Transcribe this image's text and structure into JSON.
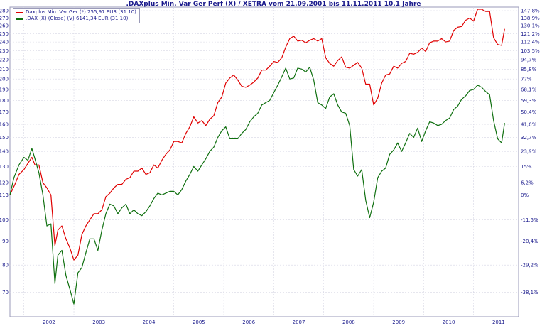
{
  "chart_data": {
    "type": "line",
    "title": ".DAXplus Min. Var Ger Perf (X) / XETRA vom 21.09.2001 bis 11.11.2011 10,1 Jahre",
    "x_ticks": [
      "2002",
      "2003",
      "2004",
      "2005",
      "2006",
      "2007",
      "2008",
      "2009",
      "2010",
      "2011"
    ],
    "y_ticks_left": [
      70,
      80,
      90,
      100,
      113,
      120,
      130,
      140,
      150,
      160,
      170,
      180,
      190,
      200,
      210,
      220,
      230,
      240,
      250,
      260,
      270,
      280
    ],
    "y_ticks_right": [
      "147,8%",
      "138,9%",
      "130,1%",
      "121,2%",
      "112,4%",
      "103,5%",
      "94,7%",
      "85,8%",
      "77%",
      "68,1%",
      "59,3%",
      "50,4%",
      "41,6%",
      "32,7%",
      "23,9%",
      "15%",
      "6,2%",
      "0%",
      "-11,5%",
      "-20,4%",
      "-29,2%",
      "-38,1%"
    ],
    "y_ticks_right_values": [
      280,
      270,
      260,
      250,
      240,
      230,
      220,
      210,
      200,
      190,
      180,
      170,
      160,
      150,
      140,
      130,
      120,
      113,
      100,
      90,
      80,
      70
    ],
    "y_scale": "log",
    "ylim": [
      62,
      285
    ],
    "xlim": [
      2001.72,
      2011.9
    ],
    "grid": true,
    "legend_position": "top-left",
    "series": [
      {
        "name": "Daxplus Min. Var Ger (*) 255,97 EUR (31.10)",
        "color": "#e00000",
        "points": [
          [
            2001.72,
            113
          ],
          [
            2001.82,
            119
          ],
          [
            2001.9,
            125
          ],
          [
            2002.0,
            128
          ],
          [
            2002.08,
            132
          ],
          [
            2002.16,
            136
          ],
          [
            2002.22,
            131
          ],
          [
            2002.3,
            131
          ],
          [
            2002.38,
            120
          ],
          [
            2002.46,
            117
          ],
          [
            2002.54,
            113
          ],
          [
            2002.62,
            88
          ],
          [
            2002.68,
            95
          ],
          [
            2002.76,
            97
          ],
          [
            2002.84,
            91
          ],
          [
            2002.92,
            87
          ],
          [
            2003.0,
            82
          ],
          [
            2003.08,
            84
          ],
          [
            2003.16,
            93
          ],
          [
            2003.24,
            97
          ],
          [
            2003.32,
            100
          ],
          [
            2003.4,
            103
          ],
          [
            2003.48,
            103
          ],
          [
            2003.56,
            105
          ],
          [
            2003.64,
            112
          ],
          [
            2003.72,
            114
          ],
          [
            2003.8,
            117
          ],
          [
            2003.88,
            119
          ],
          [
            2003.96,
            119
          ],
          [
            2004.04,
            122
          ],
          [
            2004.12,
            123
          ],
          [
            2004.2,
            127
          ],
          [
            2004.28,
            127
          ],
          [
            2004.36,
            129
          ],
          [
            2004.44,
            125
          ],
          [
            2004.52,
            126
          ],
          [
            2004.6,
            131
          ],
          [
            2004.68,
            129
          ],
          [
            2004.76,
            134
          ],
          [
            2004.84,
            138
          ],
          [
            2004.92,
            141
          ],
          [
            2005.0,
            147
          ],
          [
            2005.08,
            147
          ],
          [
            2005.16,
            146
          ],
          [
            2005.24,
            153
          ],
          [
            2005.32,
            158
          ],
          [
            2005.4,
            166
          ],
          [
            2005.48,
            161
          ],
          [
            2005.56,
            163
          ],
          [
            2005.64,
            159
          ],
          [
            2005.72,
            164
          ],
          [
            2005.8,
            167
          ],
          [
            2005.88,
            178
          ],
          [
            2005.96,
            183
          ],
          [
            2006.04,
            196
          ],
          [
            2006.12,
            201
          ],
          [
            2006.2,
            204
          ],
          [
            2006.28,
            199
          ],
          [
            2006.36,
            193
          ],
          [
            2006.44,
            192
          ],
          [
            2006.52,
            194
          ],
          [
            2006.6,
            197
          ],
          [
            2006.68,
            201
          ],
          [
            2006.76,
            209
          ],
          [
            2006.84,
            209
          ],
          [
            2006.92,
            213
          ],
          [
            2007.0,
            218
          ],
          [
            2007.08,
            217
          ],
          [
            2007.16,
            222
          ],
          [
            2007.24,
            234
          ],
          [
            2007.32,
            244
          ],
          [
            2007.4,
            247
          ],
          [
            2007.48,
            241
          ],
          [
            2007.56,
            242
          ],
          [
            2007.64,
            239
          ],
          [
            2007.72,
            242
          ],
          [
            2007.8,
            244
          ],
          [
            2007.88,
            241
          ],
          [
            2007.96,
            244
          ],
          [
            2008.04,
            222
          ],
          [
            2008.12,
            216
          ],
          [
            2008.2,
            213
          ],
          [
            2008.28,
            219
          ],
          [
            2008.36,
            223
          ],
          [
            2008.44,
            212
          ],
          [
            2008.52,
            211
          ],
          [
            2008.6,
            214
          ],
          [
            2008.68,
            217
          ],
          [
            2008.76,
            211
          ],
          [
            2008.84,
            195
          ],
          [
            2008.92,
            195
          ],
          [
            2009.0,
            176
          ],
          [
            2009.08,
            182
          ],
          [
            2009.16,
            196
          ],
          [
            2009.24,
            204
          ],
          [
            2009.32,
            205
          ],
          [
            2009.4,
            213
          ],
          [
            2009.48,
            211
          ],
          [
            2009.56,
            216
          ],
          [
            2009.64,
            218
          ],
          [
            2009.72,
            227
          ],
          [
            2009.8,
            226
          ],
          [
            2009.88,
            228
          ],
          [
            2009.96,
            233
          ],
          [
            2010.04,
            229
          ],
          [
            2010.12,
            239
          ],
          [
            2010.2,
            241
          ],
          [
            2010.28,
            241
          ],
          [
            2010.36,
            244
          ],
          [
            2010.44,
            240
          ],
          [
            2010.52,
            241
          ],
          [
            2010.6,
            254
          ],
          [
            2010.68,
            258
          ],
          [
            2010.76,
            259
          ],
          [
            2010.84,
            267
          ],
          [
            2010.92,
            270
          ],
          [
            2011.0,
            266
          ],
          [
            2011.08,
            282
          ],
          [
            2011.16,
            282
          ],
          [
            2011.24,
            279
          ],
          [
            2011.32,
            279
          ],
          [
            2011.4,
            245
          ],
          [
            2011.48,
            237
          ],
          [
            2011.56,
            236
          ],
          [
            2011.62,
            256
          ]
        ]
      },
      {
        "name": ".DAX (X) (Close) (V) 6141,34 EUR (31.10)",
        "color": "#107010",
        "points": [
          [
            2001.72,
            113
          ],
          [
            2001.8,
            123
          ],
          [
            2001.9,
            131
          ],
          [
            2002.0,
            136
          ],
          [
            2002.08,
            134
          ],
          [
            2002.16,
            142
          ],
          [
            2002.22,
            135
          ],
          [
            2002.3,
            126
          ],
          [
            2002.38,
            113
          ],
          [
            2002.46,
            97
          ],
          [
            2002.54,
            98
          ],
          [
            2002.62,
            73
          ],
          [
            2002.68,
            84
          ],
          [
            2002.76,
            86
          ],
          [
            2002.84,
            76
          ],
          [
            2002.92,
            71
          ],
          [
            2003.0,
            66
          ],
          [
            2003.08,
            77
          ],
          [
            2003.16,
            79
          ],
          [
            2003.24,
            85
          ],
          [
            2003.32,
            91
          ],
          [
            2003.4,
            91
          ],
          [
            2003.48,
            86
          ],
          [
            2003.56,
            95
          ],
          [
            2003.64,
            103
          ],
          [
            2003.72,
            108
          ],
          [
            2003.8,
            107
          ],
          [
            2003.88,
            103
          ],
          [
            2003.96,
            106
          ],
          [
            2004.04,
            108
          ],
          [
            2004.12,
            103
          ],
          [
            2004.2,
            105
          ],
          [
            2004.28,
            103
          ],
          [
            2004.36,
            102
          ],
          [
            2004.44,
            104
          ],
          [
            2004.52,
            107
          ],
          [
            2004.6,
            111
          ],
          [
            2004.68,
            114
          ],
          [
            2004.76,
            113
          ],
          [
            2004.84,
            114
          ],
          [
            2004.92,
            115
          ],
          [
            2005.0,
            115
          ],
          [
            2005.08,
            113
          ],
          [
            2005.16,
            116
          ],
          [
            2005.24,
            121
          ],
          [
            2005.32,
            125
          ],
          [
            2005.4,
            130
          ],
          [
            2005.48,
            127
          ],
          [
            2005.56,
            131
          ],
          [
            2005.64,
            135
          ],
          [
            2005.72,
            140
          ],
          [
            2005.8,
            143
          ],
          [
            2005.88,
            150
          ],
          [
            2005.96,
            155
          ],
          [
            2006.04,
            158
          ],
          [
            2006.12,
            149
          ],
          [
            2006.2,
            149
          ],
          [
            2006.28,
            149
          ],
          [
            2006.36,
            153
          ],
          [
            2006.44,
            156
          ],
          [
            2006.52,
            162
          ],
          [
            2006.6,
            166
          ],
          [
            2006.68,
            169
          ],
          [
            2006.76,
            176
          ],
          [
            2006.84,
            178
          ],
          [
            2006.92,
            180
          ],
          [
            2007.0,
            187
          ],
          [
            2007.08,
            194
          ],
          [
            2007.16,
            202
          ],
          [
            2007.24,
            211
          ],
          [
            2007.32,
            200
          ],
          [
            2007.4,
            201
          ],
          [
            2007.48,
            211
          ],
          [
            2007.56,
            210
          ],
          [
            2007.64,
            207
          ],
          [
            2007.72,
            212
          ],
          [
            2007.8,
            199
          ],
          [
            2007.88,
            178
          ],
          [
            2007.96,
            176
          ],
          [
            2008.04,
            173
          ],
          [
            2008.12,
            183
          ],
          [
            2008.2,
            186
          ],
          [
            2008.28,
            176
          ],
          [
            2008.36,
            170
          ],
          [
            2008.44,
            169
          ],
          [
            2008.52,
            159
          ],
          [
            2008.6,
            128
          ],
          [
            2008.68,
            124
          ],
          [
            2008.76,
            128
          ],
          [
            2008.84,
            110
          ],
          [
            2008.92,
            101
          ],
          [
            2009.0,
            109
          ],
          [
            2009.08,
            123
          ],
          [
            2009.16,
            127
          ],
          [
            2009.24,
            129
          ],
          [
            2009.32,
            138
          ],
          [
            2009.4,
            141
          ],
          [
            2009.48,
            146
          ],
          [
            2009.56,
            140
          ],
          [
            2009.64,
            146
          ],
          [
            2009.72,
            153
          ],
          [
            2009.8,
            150
          ],
          [
            2009.88,
            157
          ],
          [
            2009.96,
            147
          ],
          [
            2010.04,
            155
          ],
          [
            2010.12,
            162
          ],
          [
            2010.2,
            161
          ],
          [
            2010.28,
            159
          ],
          [
            2010.36,
            160
          ],
          [
            2010.44,
            163
          ],
          [
            2010.52,
            165
          ],
          [
            2010.6,
            172
          ],
          [
            2010.68,
            175
          ],
          [
            2010.76,
            181
          ],
          [
            2010.84,
            184
          ],
          [
            2010.92,
            189
          ],
          [
            2011.0,
            190
          ],
          [
            2011.08,
            194
          ],
          [
            2011.16,
            192
          ],
          [
            2011.24,
            188
          ],
          [
            2011.32,
            185
          ],
          [
            2011.4,
            163
          ],
          [
            2011.48,
            149
          ],
          [
            2011.56,
            146
          ],
          [
            2011.62,
            161
          ]
        ]
      }
    ]
  }
}
